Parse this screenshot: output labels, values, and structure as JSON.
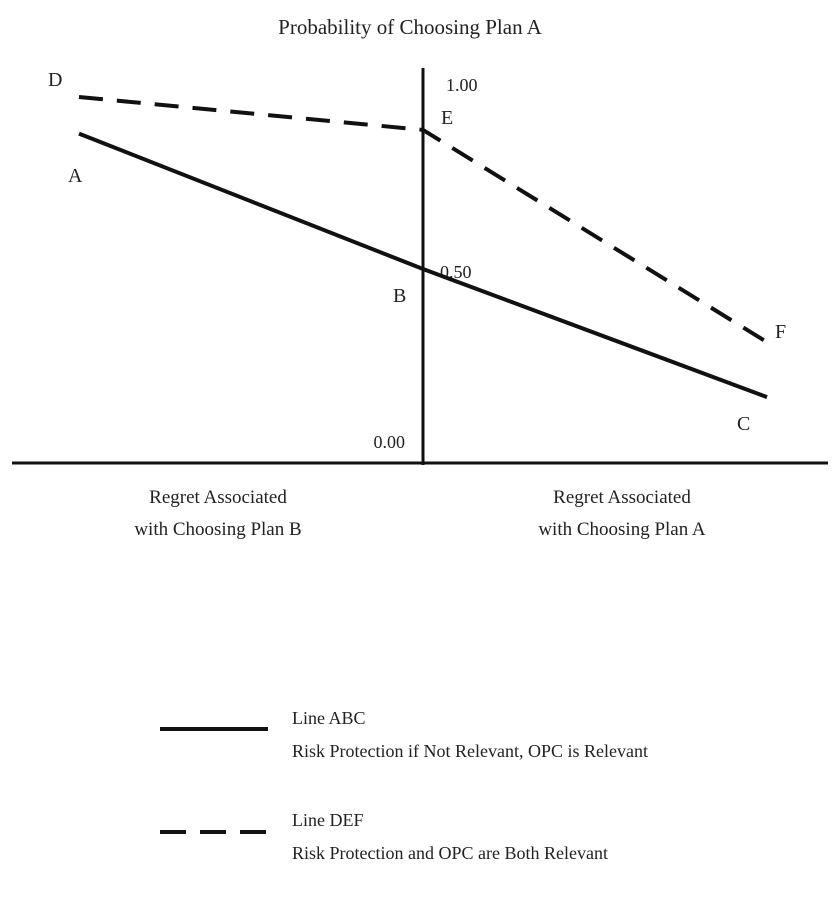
{
  "chart_data": {
    "type": "line",
    "title": "Probability of Choosing Plan A",
    "x_left_label": [
      "Regret Associated",
      "with Choosing Plan B"
    ],
    "x_right_label": [
      "Regret Associated",
      "with Choosing Plan A"
    ],
    "y_ticks": [
      "1.00",
      "0.50",
      "0.00"
    ],
    "y_tick_values": [
      1.0,
      0.5,
      0.0
    ],
    "ylim": [
      0,
      1
    ],
    "xlim": [
      -1,
      1
    ],
    "series": [
      {
        "name": "Line ABC",
        "description": "Risk Protection if Not Relevant, OPC is Relevant",
        "style": "solid",
        "points": [
          {
            "label": "A",
            "x": -0.86,
            "y": 0.87
          },
          {
            "label": "B",
            "x": 0.0,
            "y": 0.5
          },
          {
            "label": "C",
            "x": 0.86,
            "y": 0.15
          }
        ]
      },
      {
        "name": "Line DEF",
        "description": "Risk Protection and OPC are Both Relevant",
        "style": "dashed",
        "points": [
          {
            "label": "D",
            "x": -0.86,
            "y": 0.97
          },
          {
            "label": "E",
            "x": 0.0,
            "y": 0.88
          },
          {
            "label": "F",
            "x": 0.86,
            "y": 0.3
          }
        ]
      }
    ],
    "grid": false,
    "legend_position": "bottom"
  },
  "colors": {
    "ink": "#111111",
    "text": "#222222"
  }
}
